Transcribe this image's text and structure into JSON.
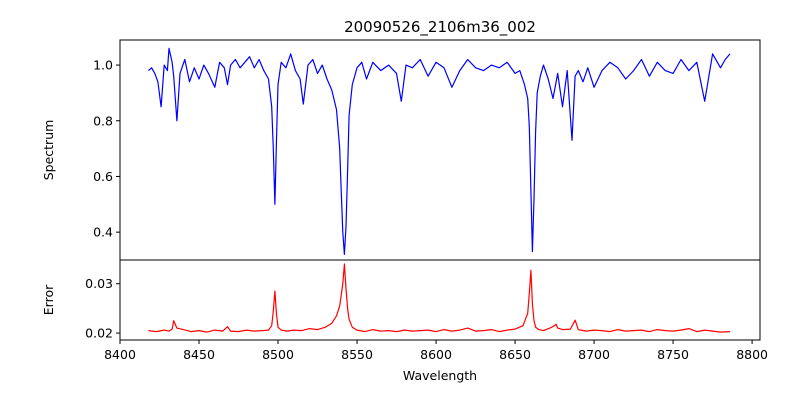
{
  "chart_data": {
    "type": "line",
    "title": "20090526_2106m36_002",
    "xlabel": "Wavelength",
    "xlim": [
      8400,
      8805
    ],
    "xticks": [
      8400,
      8450,
      8500,
      8550,
      8600,
      8650,
      8700,
      8750,
      8800
    ],
    "grid": false,
    "legend": "none",
    "panels": [
      {
        "name": "spectrum",
        "ylabel": "Spectrum",
        "ylim": [
          0.3,
          1.09
        ],
        "yticks": [
          0.4,
          0.6,
          0.8,
          1.0
        ],
        "ytick_labels": [
          "0.4",
          "0.6",
          "0.8",
          "1.0"
        ],
        "color": "#0000ff",
        "x": [
          8418,
          8420,
          8422,
          8424,
          8426,
          8428,
          8430,
          8431,
          8433,
          8434,
          8436,
          8438,
          8441,
          8444,
          8447,
          8450,
          8453,
          8456,
          8460,
          8463,
          8466,
          8468,
          8470,
          8473,
          8476,
          8479,
          8482,
          8485,
          8488,
          8491,
          8494,
          8496,
          8497,
          8498,
          8499,
          8500,
          8502,
          8505,
          8508,
          8511,
          8514,
          8516,
          8519,
          8522,
          8525,
          8528,
          8531,
          8534,
          8537,
          8539,
          8540,
          8541,
          8542,
          8543,
          8544,
          8545,
          8547,
          8550,
          8553,
          8556,
          8560,
          8565,
          8570,
          8575,
          8578,
          8581,
          8585,
          8590,
          8595,
          8600,
          8605,
          8610,
          8615,
          8620,
          8625,
          8630,
          8635,
          8640,
          8645,
          8650,
          8653,
          8656,
          8658,
          8659,
          8660,
          8661,
          8662,
          8663,
          8664,
          8666,
          8668,
          8671,
          8674,
          8677,
          8680,
          8683,
          8686,
          8688,
          8690,
          8693,
          8696,
          8700,
          8705,
          8710,
          8715,
          8720,
          8725,
          8730,
          8735,
          8740,
          8745,
          8750,
          8755,
          8760,
          8765,
          8770,
          8775,
          8780,
          8783,
          8786
        ],
        "values": [
          0.98,
          0.99,
          0.97,
          0.94,
          0.85,
          1.0,
          0.98,
          1.06,
          1.01,
          0.96,
          0.8,
          0.97,
          1.02,
          0.94,
          0.99,
          0.95,
          1.0,
          0.97,
          0.92,
          1.01,
          0.99,
          0.93,
          1.0,
          1.02,
          0.99,
          1.01,
          1.03,
          0.99,
          1.02,
          0.98,
          0.95,
          0.85,
          0.7,
          0.5,
          0.72,
          0.93,
          1.01,
          0.99,
          1.04,
          0.98,
          0.95,
          0.86,
          1.0,
          1.02,
          0.97,
          1.0,
          0.95,
          0.91,
          0.84,
          0.7,
          0.55,
          0.4,
          0.32,
          0.42,
          0.62,
          0.82,
          0.93,
          0.99,
          1.01,
          0.95,
          1.01,
          0.98,
          1.0,
          0.97,
          0.87,
          1.0,
          0.99,
          1.02,
          0.96,
          1.01,
          0.99,
          0.92,
          0.98,
          1.02,
          0.99,
          0.98,
          1.0,
          0.99,
          1.01,
          0.97,
          0.98,
          0.93,
          0.88,
          0.78,
          0.55,
          0.33,
          0.52,
          0.76,
          0.9,
          0.96,
          1.0,
          0.95,
          0.88,
          0.97,
          0.85,
          0.98,
          0.73,
          0.96,
          0.98,
          0.94,
          0.99,
          0.92,
          0.98,
          1.01,
          0.99,
          0.95,
          0.98,
          1.02,
          0.96,
          1.01,
          0.98,
          0.97,
          1.02,
          0.98,
          1.01,
          0.87,
          1.04,
          0.99,
          1.02,
          1.04
        ]
      },
      {
        "name": "error",
        "ylabel": "Error",
        "ylim": [
          0.0186,
          0.0348
        ],
        "yticks": [
          0.02,
          0.03
        ],
        "ytick_labels": [
          "0.02",
          "0.03"
        ],
        "color": "#ff0000",
        "x": [
          8418,
          8423,
          8428,
          8431,
          8433,
          8434,
          8436,
          8440,
          8445,
          8450,
          8455,
          8460,
          8465,
          8468,
          8470,
          8475,
          8480,
          8485,
          8490,
          8494,
          8496,
          8497,
          8498,
          8499,
          8500,
          8502,
          8506,
          8510,
          8515,
          8520,
          8525,
          8530,
          8534,
          8537,
          8539,
          8541,
          8542,
          8543,
          8544,
          8545,
          8547,
          8550,
          8555,
          8560,
          8565,
          8570,
          8575,
          8580,
          8585,
          8590,
          8595,
          8600,
          8605,
          8610,
          8615,
          8620,
          8625,
          8630,
          8635,
          8640,
          8645,
          8650,
          8655,
          8658,
          8659,
          8660,
          8661,
          8662,
          8663,
          8665,
          8668,
          8672,
          8675,
          8676,
          8677,
          8680,
          8685,
          8688,
          8690,
          8695,
          8700,
          8705,
          8710,
          8715,
          8720,
          8725,
          8730,
          8735,
          8740,
          8745,
          8750,
          8755,
          8760,
          8765,
          8770,
          8775,
          8780,
          8786
        ],
        "values": [
          0.0205,
          0.0203,
          0.0206,
          0.0204,
          0.0208,
          0.0225,
          0.021,
          0.0207,
          0.0203,
          0.0205,
          0.0202,
          0.0206,
          0.0204,
          0.0213,
          0.0204,
          0.0203,
          0.0206,
          0.0204,
          0.0205,
          0.0206,
          0.0215,
          0.0245,
          0.0285,
          0.024,
          0.0212,
          0.0206,
          0.0204,
          0.0206,
          0.0205,
          0.0209,
          0.0207,
          0.0212,
          0.022,
          0.0235,
          0.0255,
          0.03,
          0.034,
          0.029,
          0.025,
          0.0228,
          0.0212,
          0.0206,
          0.0203,
          0.0207,
          0.0204,
          0.0205,
          0.0203,
          0.0206,
          0.0204,
          0.0205,
          0.0206,
          0.0203,
          0.0207,
          0.0204,
          0.0206,
          0.021,
          0.0204,
          0.0205,
          0.0207,
          0.0203,
          0.0206,
          0.0208,
          0.0215,
          0.024,
          0.028,
          0.0327,
          0.026,
          0.0225,
          0.0212,
          0.0207,
          0.0205,
          0.021,
          0.0215,
          0.0218,
          0.021,
          0.0207,
          0.0208,
          0.0226,
          0.0207,
          0.0204,
          0.0206,
          0.0205,
          0.0203,
          0.0207,
          0.0204,
          0.0205,
          0.0206,
          0.0203,
          0.0207,
          0.0205,
          0.0204,
          0.0206,
          0.0209,
          0.0203,
          0.0206,
          0.0204,
          0.0202,
          0.0203
        ]
      }
    ]
  }
}
